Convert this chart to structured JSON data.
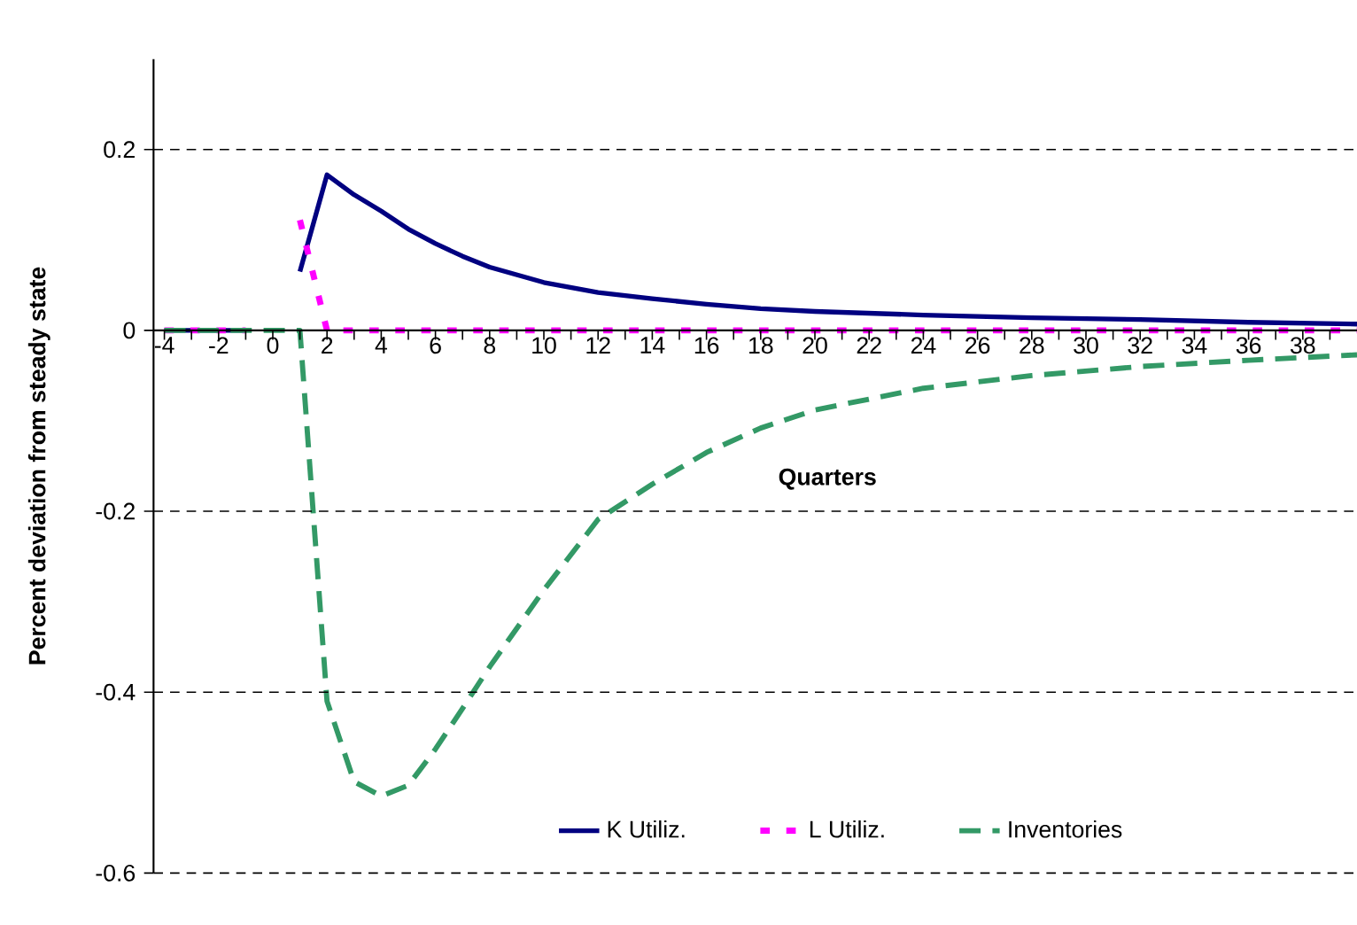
{
  "chart_data": {
    "type": "line",
    "xlabel": "Quarters",
    "ylabel": "Percent deviation from steady state",
    "xlim": [
      -4.4,
      40
    ],
    "ylim": [
      -0.6,
      0.3
    ],
    "xticks": [
      -4,
      {
        "value": -3,
        "label": null
      },
      -2,
      {
        "value": -1,
        "label": null
      },
      0,
      {
        "value": 1,
        "label": null
      },
      2,
      {
        "value": 3,
        "label": null
      },
      4,
      {
        "value": 5,
        "label": null
      },
      6,
      {
        "value": 7,
        "label": null
      },
      8,
      {
        "value": 9,
        "label": null
      },
      10,
      {
        "value": 11,
        "label": null
      },
      12,
      {
        "value": 13,
        "label": null
      },
      14,
      {
        "value": 15,
        "label": null
      },
      16,
      {
        "value": 17,
        "label": null
      },
      18,
      {
        "value": 19,
        "label": null
      },
      20,
      {
        "value": 21,
        "label": null
      },
      22,
      {
        "value": 23,
        "label": null
      },
      24,
      {
        "value": 25,
        "label": null
      },
      26,
      {
        "value": 27,
        "label": null
      },
      28,
      {
        "value": 29,
        "label": null
      },
      30,
      {
        "value": 31,
        "label": null
      },
      32,
      {
        "value": 33,
        "label": null
      },
      34,
      {
        "value": 35,
        "label": null
      },
      36,
      {
        "value": 37,
        "label": null
      },
      38,
      {
        "value": 39,
        "label": null
      }
    ],
    "yticks": [
      -0.6,
      -0.4,
      -0.2,
      0,
      0.2
    ],
    "grid": "y",
    "legend": "bottom",
    "marker": "none",
    "series": [
      {
        "name": "K Utiliz.",
        "color": "#000080",
        "line_style": "solid",
        "x": [
          -4,
          -1,
          0,
          1,
          2,
          3,
          4,
          5,
          6,
          7,
          8,
          10,
          12,
          14,
          16,
          18,
          20,
          24,
          28,
          32,
          36,
          40
        ],
        "values": [
          0,
          0,
          null,
          0.065,
          0.172,
          0.15,
          0.132,
          0.112,
          0.096,
          0.082,
          0.07,
          0.053,
          0.042,
          0.035,
          0.029,
          0.024,
          0.021,
          0.017,
          0.014,
          0.012,
          0.009,
          0.007
        ]
      },
      {
        "name": "L Utiliz.",
        "color": "#ff00ff",
        "line_style": "dotted",
        "x": [
          -4,
          -1,
          0,
          1,
          2,
          40
        ],
        "values": [
          0,
          0,
          null,
          0.122,
          0,
          0
        ]
      },
      {
        "name": "Inventories",
        "color": "#339966",
        "line_style": "dashed",
        "x": [
          -4,
          0,
          1,
          2,
          3,
          4,
          5,
          6,
          7,
          8,
          10,
          12,
          14,
          16,
          18,
          20,
          24,
          28,
          32,
          36,
          40
        ],
        "values": [
          0,
          0,
          0,
          -0.41,
          -0.499,
          -0.515,
          -0.503,
          -0.463,
          -0.418,
          -0.372,
          -0.287,
          -0.209,
          -0.17,
          -0.135,
          -0.108,
          -0.088,
          -0.064,
          -0.05,
          -0.04,
          -0.033,
          -0.027
        ]
      }
    ]
  }
}
